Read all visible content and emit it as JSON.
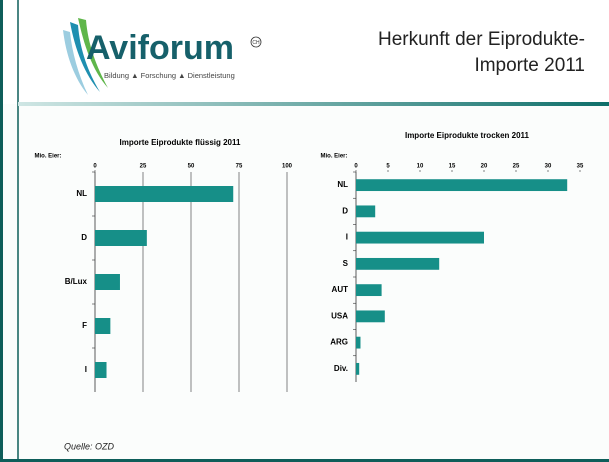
{
  "header": {
    "logo": "Aviforum",
    "logo_mark": "CH",
    "tagline": "Bildung ▲ Forschung ▲ Dienstleistung",
    "title": [
      "Herkunft der Eiprodukte-",
      "Importe 2011"
    ]
  },
  "chart_data": [
    {
      "type": "barh",
      "title": "Importe Eiprodukte flüssig 2011",
      "xlabel": "Mio. Eier:",
      "categories": [
        "NL",
        "D",
        "B/Lux",
        "F",
        "I"
      ],
      "values": [
        72,
        27,
        13,
        8,
        6
      ],
      "color": "#168f88",
      "xlim": [
        0,
        100
      ],
      "xticks": [
        0,
        25,
        50,
        75,
        100
      ],
      "grid": true
    },
    {
      "type": "barh",
      "title": "Importe Eiprodukte trocken 2011",
      "xlabel": "Mio. Eier:",
      "categories": [
        "NL",
        "D",
        "I",
        "S",
        "AUT",
        "USA",
        "ARG",
        "Div."
      ],
      "values": [
        33,
        3,
        20,
        13,
        4,
        4.5,
        0.7,
        0.5
      ],
      "color": "#168f88",
      "xlim": [
        0,
        35
      ],
      "xticks": [
        0,
        5,
        10,
        15,
        20,
        25,
        30,
        35
      ],
      "grid": false
    }
  ],
  "source": "Quelle: OZD"
}
